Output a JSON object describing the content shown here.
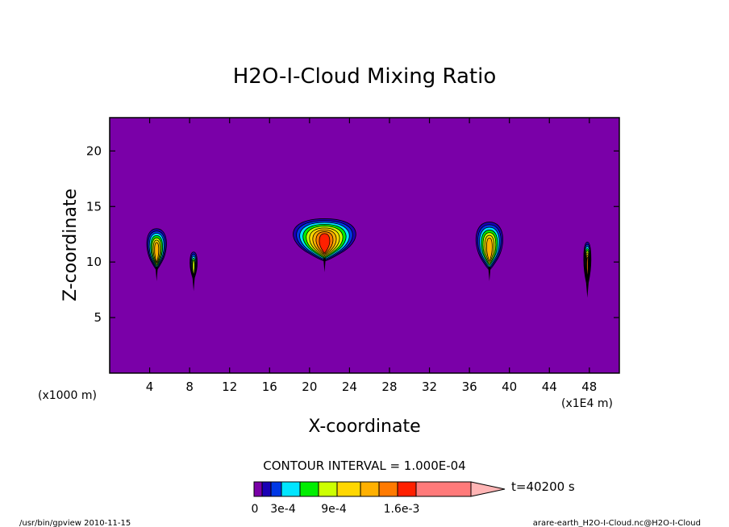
{
  "chart_data": {
    "type": "heatmap",
    "title": "H2O-I-Cloud Mixing Ratio",
    "xlabel": "X-coordinate",
    "ylabel": "Z-coordinate",
    "x_unit_left": "(x1000 m)",
    "x_unit_right": "(x1E4 m)",
    "xlim": [
      0,
      51
    ],
    "ylim": [
      0,
      23
    ],
    "x_ticks": [
      4,
      8,
      12,
      16,
      20,
      24,
      28,
      32,
      36,
      40,
      44,
      48
    ],
    "y_ticks": [
      5,
      10,
      15,
      20
    ],
    "background_color": "#7a00a8",
    "contour_interval": "CONTOUR INTERVAL = 1.000E-04",
    "time_label": "t=40200 s",
    "colorbar": {
      "colors": [
        "#7a00a8",
        "#1a00b5",
        "#0038e6",
        "#00e5ff",
        "#00ee00",
        "#ccff00",
        "#ffd700",
        "#ffb000",
        "#ff7a00",
        "#ff2000",
        "#ff7a7a",
        "#ffb5b5"
      ],
      "labels": [
        "0",
        "3e-4",
        "9e-4",
        "1.6e-3"
      ]
    },
    "clouds": [
      {
        "x": 4.7,
        "z_bottom": 9.3,
        "z_top": 13.0,
        "half_width": 1.1,
        "max_level": 7
      },
      {
        "x": 8.4,
        "z_bottom": 8.4,
        "z_top": 10.9,
        "half_width": 0.4,
        "max_level": 5
      },
      {
        "x": 21.5,
        "z_bottom": 10.1,
        "z_top": 13.9,
        "half_width": 3.5,
        "max_level": 9
      },
      {
        "x": 38.0,
        "z_bottom": 9.3,
        "z_top": 13.6,
        "half_width": 1.5,
        "max_level": 7
      },
      {
        "x": 47.8,
        "z_bottom": 7.8,
        "z_top": 11.8,
        "half_width": 0.4,
        "max_level": 8
      }
    ]
  },
  "footer": {
    "left": "/usr/bin/gpview   2010-11-15",
    "right": "arare-earth_H2O-I-Cloud.nc@H2O-I-Cloud"
  }
}
